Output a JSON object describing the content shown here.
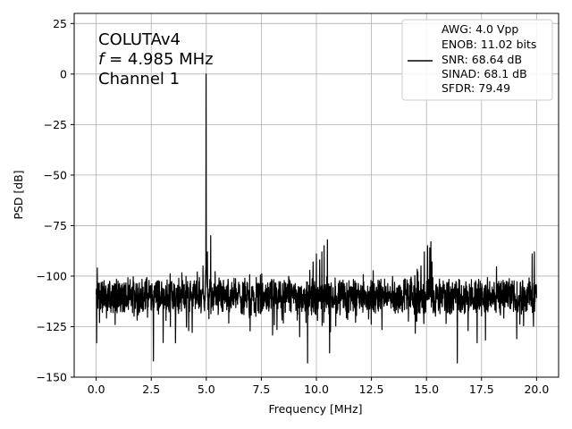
{
  "chart_data": {
    "type": "line",
    "xlabel": "Frequency [MHz]",
    "ylabel": "PSD [dB]",
    "xlim": [
      -1.0,
      21.0
    ],
    "ylim": [
      -150,
      30
    ],
    "xticks": [
      "0.0",
      "2.5",
      "5.0",
      "7.5",
      "10.0",
      "12.5",
      "15.0",
      "17.5",
      "20.0"
    ],
    "xtick_values": [
      0,
      2.5,
      5,
      7.5,
      10,
      12.5,
      15,
      17.5,
      20
    ],
    "yticks": [
      "25",
      "0",
      "−25",
      "−50",
      "−75",
      "−100",
      "−125",
      "−150"
    ],
    "ytick_values": [
      25,
      0,
      -25,
      -50,
      -75,
      -100,
      -125,
      -150
    ],
    "grid": true,
    "legend_position": "upper right",
    "annotation": {
      "line1": "COLUTAv4",
      "line2_symbol": "f",
      "line2_rest": " = 4.985 MHz",
      "line3": "Channel 1"
    },
    "legend": {
      "lines": [
        "AWG: 4.0 Vpp",
        "ENOB: 11.02 bits",
        "SNR: 68.64 dB",
        "SINAD: 68.1 dB",
        "SFDR: 79.49"
      ],
      "color": "#000000"
    },
    "series": [
      {
        "color": "#000000",
        "noise_floor_db": -110,
        "x_range": [
          0,
          20
        ],
        "peaks": [
          {
            "x": 4.985,
            "y": 0
          },
          {
            "x": 5.05,
            "y": -88
          },
          {
            "x": 5.2,
            "y": -80
          },
          {
            "x": 4.85,
            "y": -95
          },
          {
            "x": 9.85,
            "y": -93
          },
          {
            "x": 10.0,
            "y": -89
          },
          {
            "x": 10.15,
            "y": -92
          },
          {
            "x": 10.25,
            "y": -88
          },
          {
            "x": 10.35,
            "y": -85
          },
          {
            "x": 10.5,
            "y": -82
          },
          {
            "x": 14.75,
            "y": -95
          },
          {
            "x": 14.9,
            "y": -88
          },
          {
            "x": 15.05,
            "y": -85
          },
          {
            "x": 15.15,
            "y": -86
          },
          {
            "x": 15.2,
            "y": -83
          },
          {
            "x": 15.25,
            "y": -93
          },
          {
            "x": 19.8,
            "y": -89
          },
          {
            "x": 19.9,
            "y": -88
          },
          {
            "x": 0.05,
            "y": -96
          }
        ],
        "dips": [
          {
            "x": 0.02,
            "y": -133
          },
          {
            "x": 2.6,
            "y": -142
          },
          {
            "x": 3.6,
            "y": -133
          },
          {
            "x": 4.2,
            "y": -127
          },
          {
            "x": 9.6,
            "y": -143
          },
          {
            "x": 10.6,
            "y": -138
          },
          {
            "x": 16.4,
            "y": -143
          },
          {
            "x": 17.3,
            "y": -133
          },
          {
            "x": 19.1,
            "y": -131
          }
        ]
      }
    ]
  }
}
